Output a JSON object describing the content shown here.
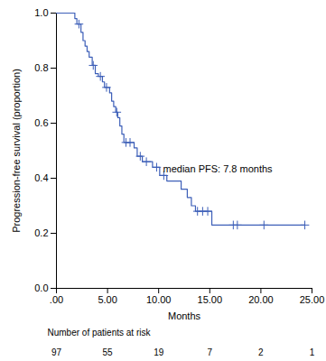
{
  "chart_data": {
    "type": "kaplan_meier",
    "x_label": "Months",
    "y_label": "Progression-free survival (proportion)",
    "annotation": "median PFS: 7.8 months",
    "color": "#3d5fb8",
    "line_style": "step",
    "x": [
      0,
      1.8,
      2.0,
      2.4,
      2.6,
      2.8,
      3.0,
      3.2,
      3.5,
      3.8,
      4.1,
      4.5,
      4.7,
      5.2,
      5.4,
      5.6,
      5.8,
      6.0,
      6.2,
      6.4,
      6.6,
      7.6,
      7.9,
      8.4,
      9.4,
      10.1,
      10.8,
      12.2,
      12.8,
      13.2,
      13.6,
      15.2,
      24.3
    ],
    "values": [
      1,
      0.98,
      0.96,
      0.93,
      0.9,
      0.88,
      0.86,
      0.84,
      0.81,
      0.78,
      0.77,
      0.75,
      0.73,
      0.71,
      0.68,
      0.66,
      0.64,
      0.62,
      0.59,
      0.56,
      0.53,
      0.51,
      0.48,
      0.46,
      0.44,
      0.41,
      0.39,
      0.36,
      0.33,
      0.3,
      0.28,
      0.23,
      0.23
    ],
    "censored": {
      "marker": "plus",
      "x": [
        2.2,
        3.6,
        4.3,
        4.9,
        5.9,
        6.8,
        7.2,
        8.2,
        8.8,
        9.8,
        10.5,
        13.8,
        14.3,
        14.8,
        17.3,
        17.7,
        20.3,
        24.3
      ],
      "values": [
        0.96,
        0.81,
        0.77,
        0.73,
        0.64,
        0.53,
        0.53,
        0.48,
        0.46,
        0.44,
        0.41,
        0.28,
        0.28,
        0.28,
        0.23,
        0.23,
        0.23,
        0.23
      ]
    },
    "at_risk": {
      "label": "Number of patients at risk",
      "x": [
        0,
        5,
        10,
        15,
        20,
        25
      ],
      "values": [
        97,
        55,
        19,
        7,
        2,
        1
      ]
    },
    "xlim": [
      0,
      25
    ],
    "xticks": [
      {
        "value": 0,
        "label": ".00"
      },
      {
        "value": 5,
        "label": "5.00"
      },
      {
        "value": 10,
        "label": "10.00"
      },
      {
        "value": 15,
        "label": "15.00"
      },
      {
        "value": 20,
        "label": "20.00"
      },
      {
        "value": 25,
        "label": "25.00"
      }
    ],
    "ylim": [
      0,
      1
    ],
    "yticks": [
      {
        "value": 0,
        "label": "0.0"
      },
      0.2,
      0.4,
      0.6,
      0.8,
      {
        "value": 1,
        "label": "1.0"
      }
    ],
    "grid": false
  }
}
